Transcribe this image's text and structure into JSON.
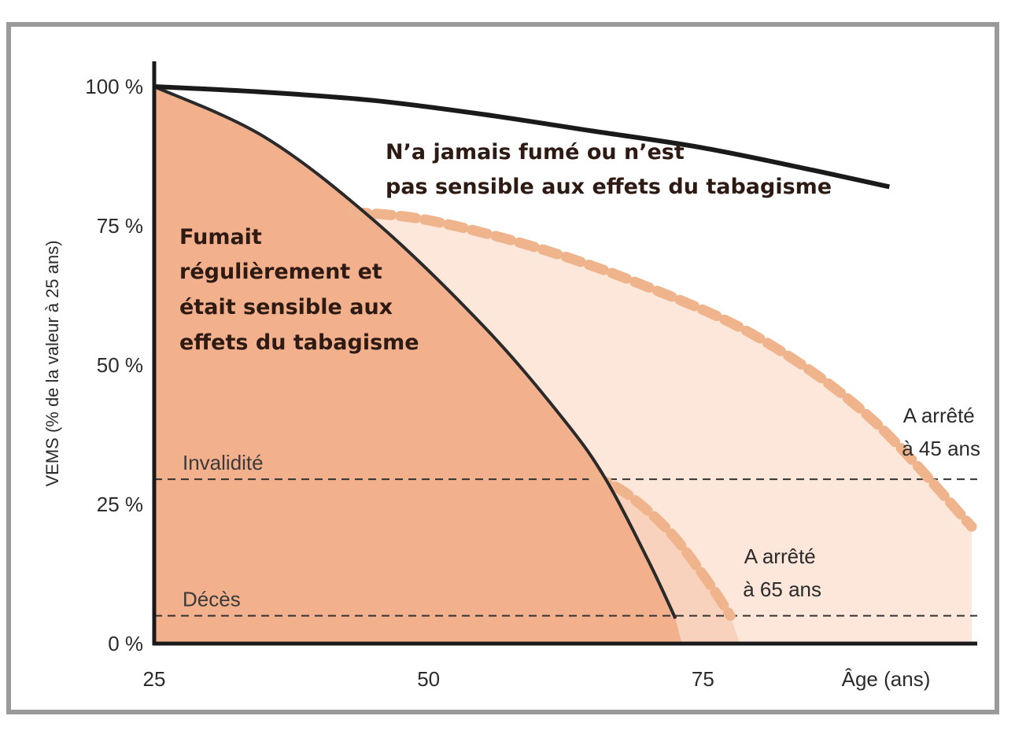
{
  "chart_data": {
    "type": "line",
    "ylabel": "VEMS (% de la valeur à 25 ans)",
    "x_ticks": [
      "25",
      "50",
      "75"
    ],
    "x_tick_values": [
      25,
      50,
      75
    ],
    "xlabel": "Âge (ans)",
    "y_ticks": [
      "0 %",
      "25 %",
      "50 %",
      "75 %",
      "100 %"
    ],
    "y_tick_values": [
      0,
      25,
      50,
      75,
      100
    ],
    "xlim": [
      25,
      100
    ],
    "ylim": [
      0,
      100
    ],
    "series": [
      {
        "name": "N’a jamais fumé ou n’est pas sensible aux effets du tabagisme",
        "style": "solid",
        "color": "#1a1a1a",
        "x": [
          25,
          35,
          45,
          55,
          65,
          75,
          85,
          92
        ],
        "y": [
          100,
          99,
          97.5,
          95,
          92,
          89,
          85,
          82
        ]
      },
      {
        "name": "Fumait régulièrement et était sensible aux effets du tabagisme",
        "style": "solid",
        "color": "#2a2a2a",
        "fill": "#f3b08c",
        "x": [
          25,
          35,
          45,
          55,
          62,
          66,
          70,
          72.5
        ],
        "y": [
          100,
          91,
          76,
          57,
          41,
          30,
          15,
          4.5
        ]
      },
      {
        "name": "A arrêté à 45 ans",
        "style": "dashed",
        "color": "#f0b48c",
        "fill": "#fde6da",
        "x": [
          43,
          50,
          60,
          70,
          80,
          90,
          99.5
        ],
        "y": [
          77.5,
          76,
          71,
          64,
          55,
          41,
          21
        ]
      },
      {
        "name": "A arrêté à 65 ans",
        "style": "dashed",
        "color": "#f0b48c",
        "fill": "#f9d2bd",
        "x": [
          65,
          68,
          72,
          75.5,
          77.5
        ],
        "y": [
          30,
          27,
          20,
          11,
          5
        ]
      }
    ],
    "reference_lines": [
      {
        "label": "Invalidité",
        "y": 29.5
      },
      {
        "label": "Décès",
        "y": 5
      }
    ],
    "annotations": {
      "never_smoked": [
        "N’a jamais fumé ou n’est",
        "pas sensible aux effets du tabagisme"
      ],
      "smoker": [
        "Fumait",
        "régulièrement et",
        "était sensible aux",
        "effets du tabagisme"
      ],
      "stopped_45": [
        "A arrêté",
        "à 45 ans"
      ],
      "stopped_65": [
        "A arrêté",
        "à 65 ans"
      ]
    },
    "grid": false,
    "legend": "none"
  }
}
